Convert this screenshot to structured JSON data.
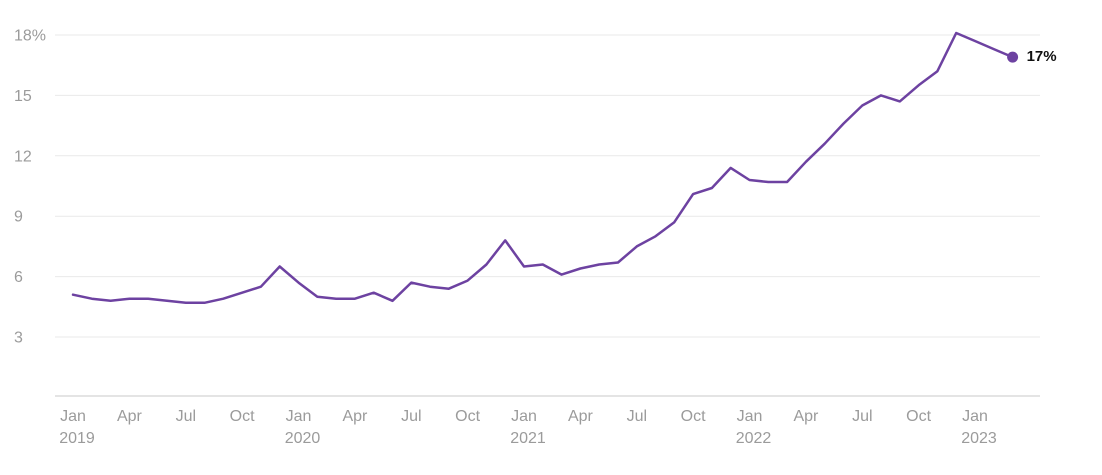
{
  "chart_data": {
    "type": "line",
    "title": "",
    "unit": "%",
    "grid": true,
    "legend": false,
    "ylim": [
      0,
      18.5
    ],
    "months": [
      "Jan 2019",
      "Feb 2019",
      "Mar 2019",
      "Apr 2019",
      "May 2019",
      "Jun 2019",
      "Jul 2019",
      "Aug 2019",
      "Sep 2019",
      "Oct 2019",
      "Nov 2019",
      "Dec 2019",
      "Jan 2020",
      "Feb 2020",
      "Mar 2020",
      "Apr 2020",
      "May 2020",
      "Jun 2020",
      "Jul 2020",
      "Aug 2020",
      "Sep 2020",
      "Oct 2020",
      "Nov 2020",
      "Dec 2020",
      "Jan 2021",
      "Feb 2021",
      "Mar 2021",
      "Apr 2021",
      "May 2021",
      "Jun 2021",
      "Jul 2021",
      "Aug 2021",
      "Sep 2021",
      "Oct 2021",
      "Nov 2021",
      "Dec 2021",
      "Jan 2022",
      "Feb 2022",
      "Mar 2022",
      "Apr 2022",
      "May 2022",
      "Jun 2022",
      "Jul 2022",
      "Aug 2022",
      "Sep 2022",
      "Oct 2022",
      "Nov 2022",
      "Dec 2022",
      "Jan 2023",
      "Feb 2023",
      "Mar 2023"
    ],
    "values": [
      5.1,
      4.9,
      4.8,
      4.9,
      4.9,
      4.8,
      4.7,
      4.7,
      4.9,
      5.2,
      5.5,
      6.5,
      5.7,
      5.0,
      4.9,
      4.9,
      5.2,
      4.8,
      5.7,
      5.5,
      5.4,
      5.8,
      6.6,
      7.8,
      6.5,
      6.6,
      6.1,
      6.4,
      6.6,
      6.7,
      7.5,
      8.0,
      8.7,
      10.1,
      10.4,
      11.4,
      10.8,
      10.7,
      10.7,
      11.7,
      12.6,
      13.6,
      14.5,
      15.0,
      14.7,
      15.5,
      16.2,
      18.1,
      17.7,
      17.3,
      16.9
    ],
    "end_label": "17%",
    "latest_value": 17,
    "y_ticks": [
      {
        "v": 18,
        "label": "18%"
      },
      {
        "v": 15,
        "label": "15"
      },
      {
        "v": 12,
        "label": "12"
      },
      {
        "v": 9,
        "label": "9"
      },
      {
        "v": 6,
        "label": "6"
      },
      {
        "v": 3,
        "label": "3"
      }
    ],
    "x_ticks": [
      {
        "i": 0,
        "label": "Jan",
        "year": "2019"
      },
      {
        "i": 3,
        "label": "Apr"
      },
      {
        "i": 6,
        "label": "Jul"
      },
      {
        "i": 9,
        "label": "Oct"
      },
      {
        "i": 12,
        "label": "Jan",
        "year": "2020"
      },
      {
        "i": 15,
        "label": "Apr"
      },
      {
        "i": 18,
        "label": "Jul"
      },
      {
        "i": 21,
        "label": "Oct"
      },
      {
        "i": 24,
        "label": "Jan",
        "year": "2021"
      },
      {
        "i": 27,
        "label": "Apr"
      },
      {
        "i": 30,
        "label": "Jul"
      },
      {
        "i": 33,
        "label": "Oct"
      },
      {
        "i": 36,
        "label": "Jan",
        "year": "2022"
      },
      {
        "i": 39,
        "label": "Apr"
      },
      {
        "i": 42,
        "label": "Jul"
      },
      {
        "i": 45,
        "label": "Oct"
      },
      {
        "i": 48,
        "label": "Jan",
        "year": "2023"
      }
    ]
  },
  "colors": {
    "line": "#6d42a1",
    "marker": "#6d42a1",
    "grid": "#e9e9e9",
    "axis": "#c9c9c9",
    "tick_text": "#9b9b9b",
    "end_label_text": "#111111",
    "background": "#ffffff"
  }
}
